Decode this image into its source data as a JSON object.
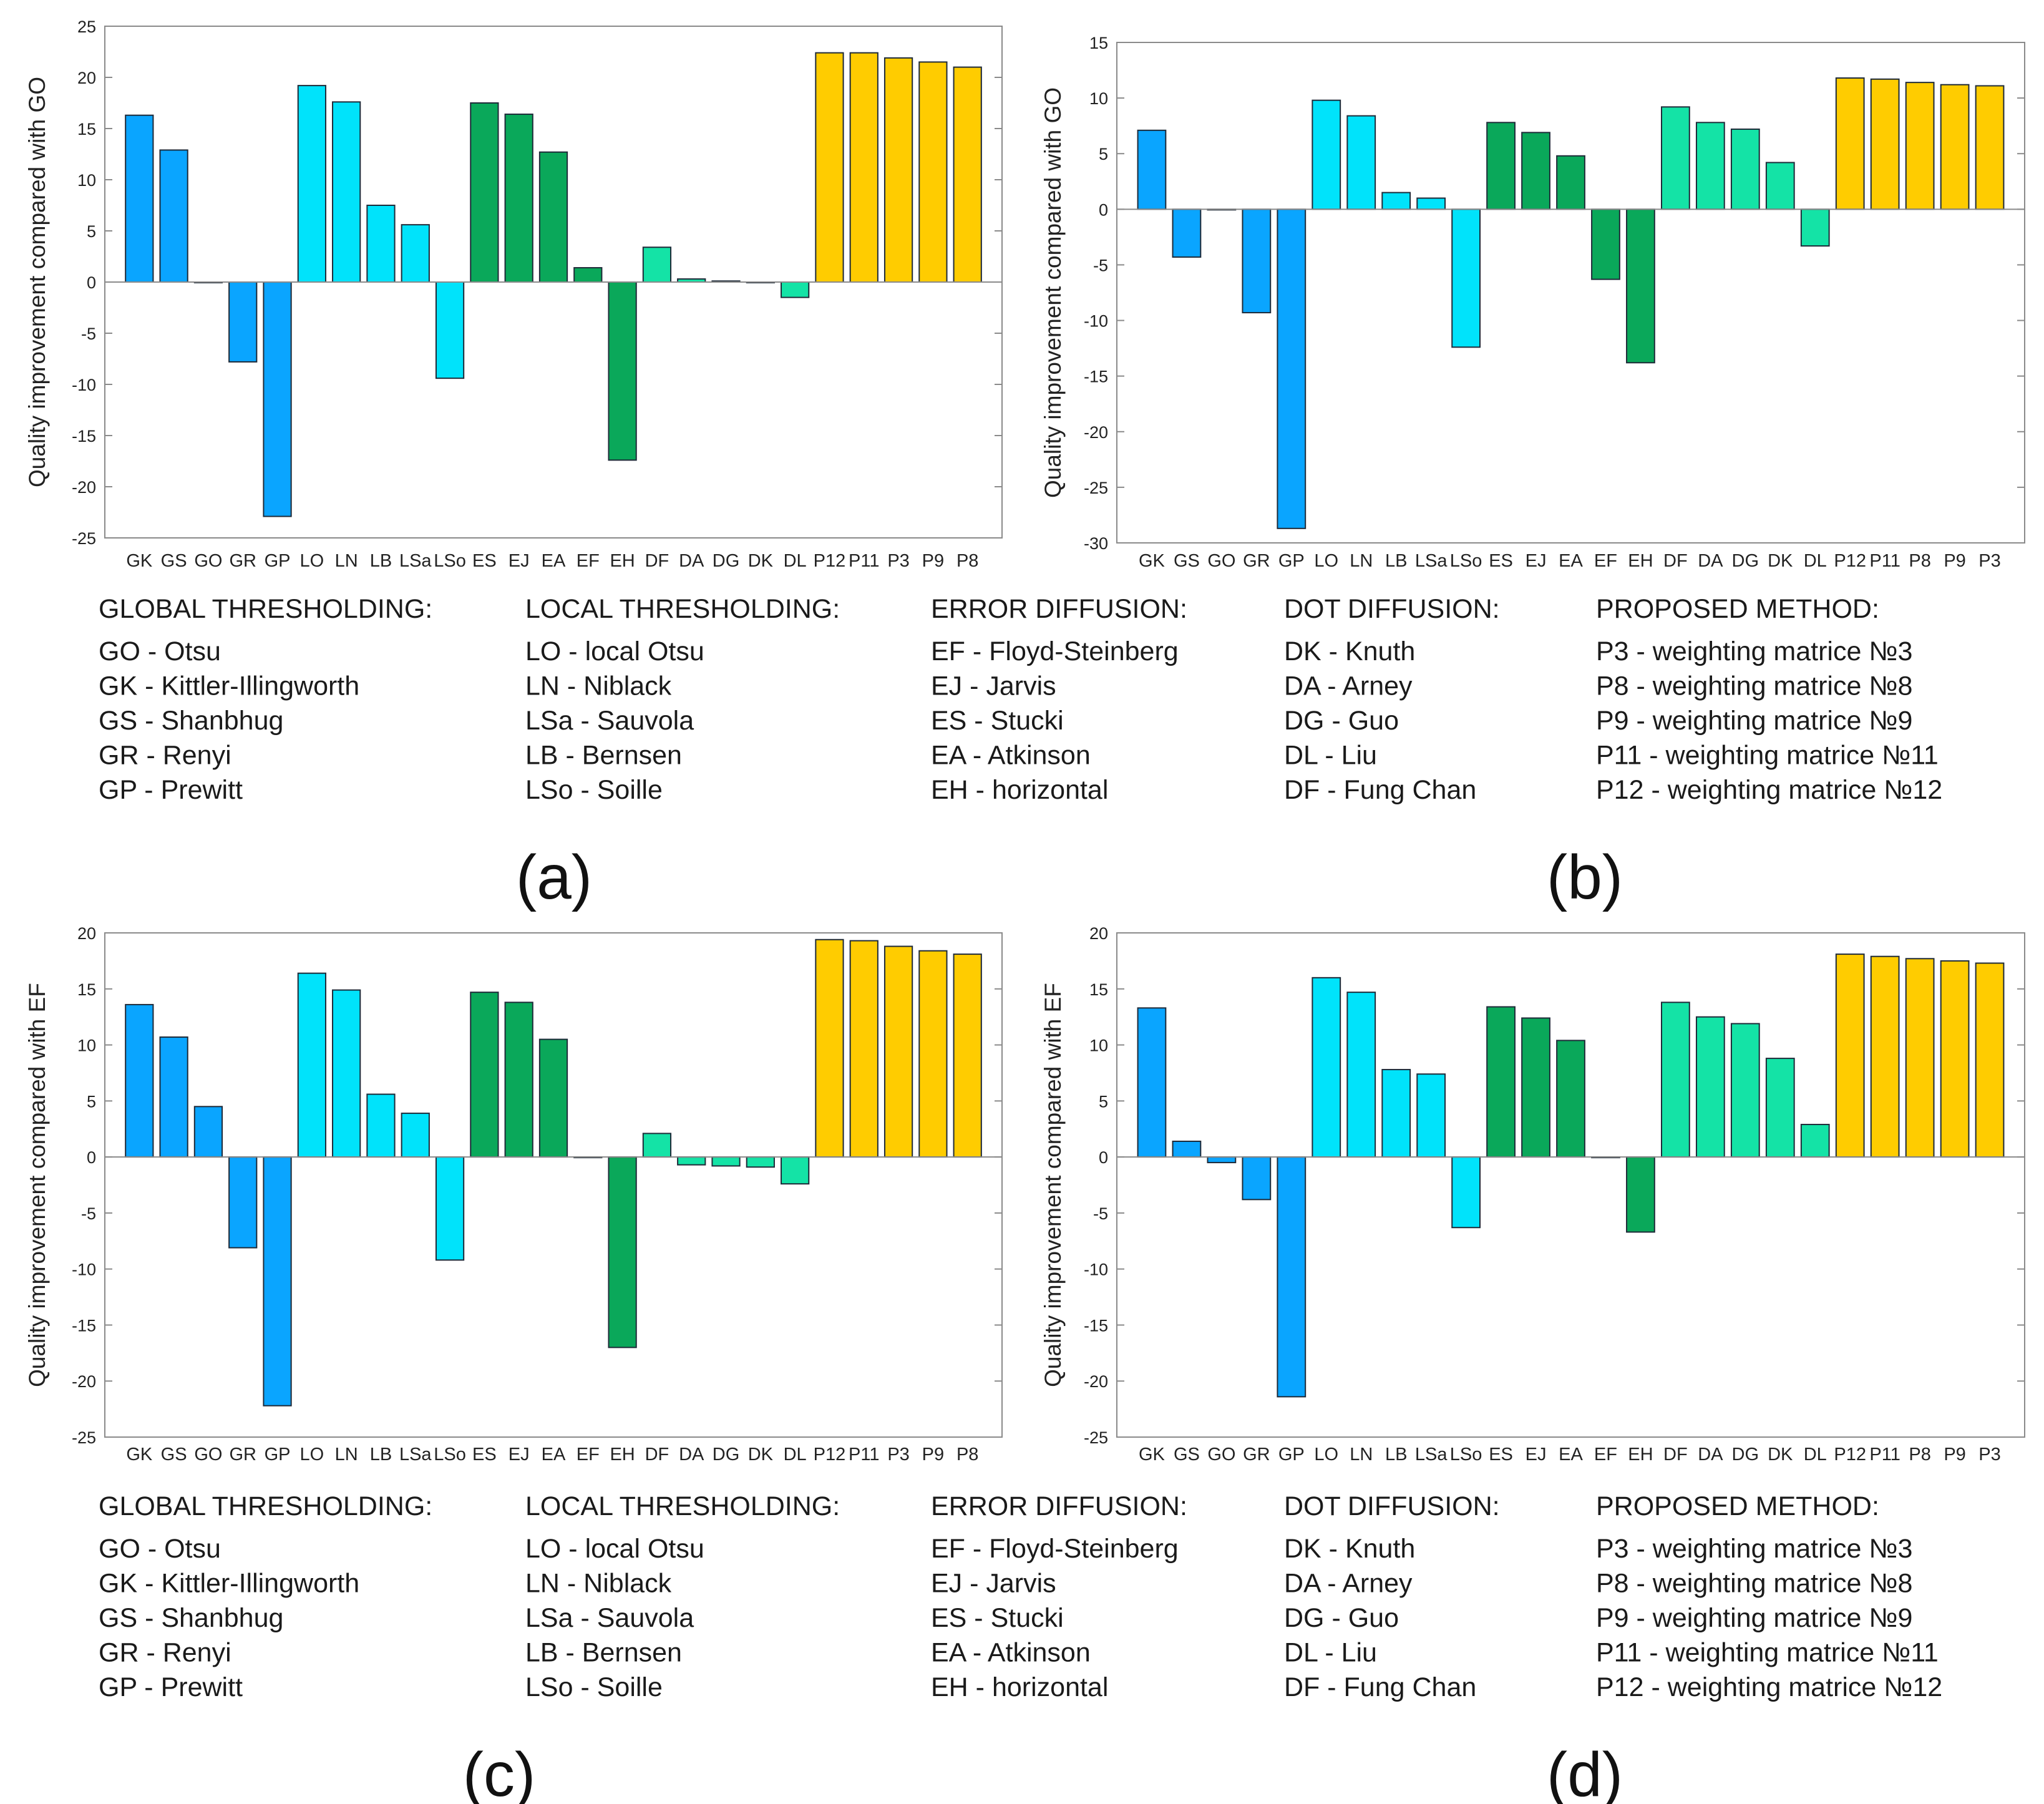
{
  "figure": {
    "panel_labels": [
      "(a)",
      "(b)",
      "(c)",
      "(d)"
    ]
  },
  "colors": {
    "global": "#0aa5ff",
    "local": "#00e3fb",
    "error": "#0aa85a",
    "dot": "#14e3a6",
    "proposed": "#ffcc00"
  },
  "legend": {
    "groups": [
      {
        "heading": "GLOBAL THRESHOLDING:",
        "items": [
          "GO - Otsu",
          "GK - Kittler-Illingworth",
          "GS - Shanbhug",
          "GR - Renyi",
          "GP - Prewitt"
        ]
      },
      {
        "heading": "LOCAL THRESHOLDING:",
        "items": [
          "LO - local Otsu",
          "LN - Niblack",
          "LSa - Sauvola",
          "LB - Bernsen",
          "LSo - Soille"
        ]
      },
      {
        "heading": "ERROR DIFFUSION:",
        "items": [
          "EF - Floyd-Steinberg",
          "EJ - Jarvis",
          "ES - Stucki",
          "EA - Atkinson",
          "EH - horizontal"
        ]
      },
      {
        "heading": "DOT DIFFUSION:",
        "items": [
          "DK - Knuth",
          "DA - Arney",
          "DG - Guo",
          "DL - Liu",
          "DF - Fung Chan"
        ]
      },
      {
        "heading": "PROPOSED METHOD:",
        "items": [
          "P3 - weighting matrice №3",
          "P8 - weighting matrice №8",
          "P9 - weighting matrice №9",
          "P11 - weighting matrice №11",
          "P12 - weighting matrice №12"
        ]
      }
    ]
  },
  "chart_data": [
    {
      "type": "bar",
      "panel": "(a)",
      "ylabel": "Quality improvement compared with GO",
      "ylim": [
        -25,
        25
      ],
      "yticks": [
        -25,
        -20,
        -15,
        -10,
        -5,
        0,
        5,
        10,
        15,
        20,
        25
      ],
      "categories": [
        "GK",
        "GS",
        "GO",
        "GR",
        "GP",
        "LO",
        "LN",
        "LB",
        "LSa",
        "LSo",
        "ES",
        "EJ",
        "EA",
        "EF",
        "EH",
        "DF",
        "DA",
        "DG",
        "DK",
        "DL",
        "P12",
        "P11",
        "P3",
        "P9",
        "P8"
      ],
      "groups": [
        "global",
        "global",
        "global",
        "global",
        "global",
        "local",
        "local",
        "local",
        "local",
        "local",
        "error",
        "error",
        "error",
        "error",
        "error",
        "dot",
        "dot",
        "dot",
        "dot",
        "dot",
        "proposed",
        "proposed",
        "proposed",
        "proposed",
        "proposed"
      ],
      "values": [
        16.3,
        12.9,
        0,
        -7.8,
        -22.9,
        19.2,
        17.6,
        7.5,
        5.6,
        -9.4,
        17.5,
        16.4,
        12.7,
        1.4,
        -17.4,
        3.4,
        0.3,
        0.1,
        0,
        -1.5,
        22.4,
        22.4,
        21.9,
        21.5,
        21.0
      ]
    },
    {
      "type": "bar",
      "panel": "(b)",
      "ylabel": "Quality improvement compared with GO",
      "ylim": [
        -30,
        15
      ],
      "yticks": [
        -30,
        -25,
        -20,
        -15,
        -10,
        -5,
        0,
        5,
        10,
        15
      ],
      "categories": [
        "GK",
        "GS",
        "GO",
        "GR",
        "GP",
        "LO",
        "LN",
        "LB",
        "LSa",
        "LSo",
        "ES",
        "EJ",
        "EA",
        "EF",
        "EH",
        "DF",
        "DA",
        "DG",
        "DK",
        "DL",
        "P12",
        "P11",
        "P8",
        "P9",
        "P3"
      ],
      "groups": [
        "global",
        "global",
        "global",
        "global",
        "global",
        "local",
        "local",
        "local",
        "local",
        "local",
        "error",
        "error",
        "error",
        "error",
        "error",
        "dot",
        "dot",
        "dot",
        "dot",
        "dot",
        "proposed",
        "proposed",
        "proposed",
        "proposed",
        "proposed"
      ],
      "values": [
        7.1,
        -4.3,
        0,
        -9.3,
        -28.7,
        9.8,
        8.4,
        1.5,
        1.0,
        -12.4,
        7.8,
        6.9,
        4.8,
        -6.3,
        -13.8,
        9.2,
        7.8,
        7.2,
        4.2,
        -3.3,
        11.8,
        11.7,
        11.4,
        11.2,
        11.1
      ]
    },
    {
      "type": "bar",
      "panel": "(c)",
      "ylabel": "Quality improvement compared with EF",
      "ylim": [
        -25,
        20
      ],
      "yticks": [
        -25,
        -20,
        -15,
        -10,
        -5,
        0,
        5,
        10,
        15,
        20
      ],
      "categories": [
        "GK",
        "GS",
        "GO",
        "GR",
        "GP",
        "LO",
        "LN",
        "LB",
        "LSa",
        "LSo",
        "ES",
        "EJ",
        "EA",
        "EF",
        "EH",
        "DF",
        "DA",
        "DG",
        "DK",
        "DL",
        "P12",
        "P11",
        "P3",
        "P9",
        "P8"
      ],
      "groups": [
        "global",
        "global",
        "global",
        "global",
        "global",
        "local",
        "local",
        "local",
        "local",
        "local",
        "error",
        "error",
        "error",
        "error",
        "error",
        "dot",
        "dot",
        "dot",
        "dot",
        "dot",
        "proposed",
        "proposed",
        "proposed",
        "proposed",
        "proposed"
      ],
      "values": [
        13.6,
        10.7,
        4.5,
        -8.1,
        -22.2,
        16.4,
        14.9,
        5.6,
        3.9,
        -9.2,
        14.7,
        13.8,
        10.5,
        0,
        -17.0,
        2.1,
        -0.7,
        -0.8,
        -0.9,
        -2.4,
        19.4,
        19.3,
        18.8,
        18.4,
        18.1
      ]
    },
    {
      "type": "bar",
      "panel": "(d)",
      "ylabel": "Quality improvement compared with EF",
      "ylim": [
        -25,
        20
      ],
      "yticks": [
        -25,
        -20,
        -15,
        -10,
        -5,
        0,
        5,
        10,
        15,
        20
      ],
      "categories": [
        "GK",
        "GS",
        "GO",
        "GR",
        "GP",
        "LO",
        "LN",
        "LB",
        "LSa",
        "LSo",
        "ES",
        "EJ",
        "EA",
        "EF",
        "EH",
        "DF",
        "DA",
        "DG",
        "DK",
        "DL",
        "P12",
        "P11",
        "P8",
        "P9",
        "P3"
      ],
      "groups": [
        "global",
        "global",
        "global",
        "global",
        "global",
        "local",
        "local",
        "local",
        "local",
        "local",
        "error",
        "error",
        "error",
        "error",
        "error",
        "dot",
        "dot",
        "dot",
        "dot",
        "dot",
        "proposed",
        "proposed",
        "proposed",
        "proposed",
        "proposed"
      ],
      "values": [
        13.3,
        1.4,
        -0.5,
        -3.8,
        -21.4,
        16.0,
        14.7,
        7.8,
        7.4,
        -6.3,
        13.4,
        12.4,
        10.4,
        0,
        -6.7,
        13.8,
        12.5,
        11.9,
        8.8,
        2.9,
        18.1,
        17.9,
        17.7,
        17.5,
        17.3
      ]
    }
  ]
}
